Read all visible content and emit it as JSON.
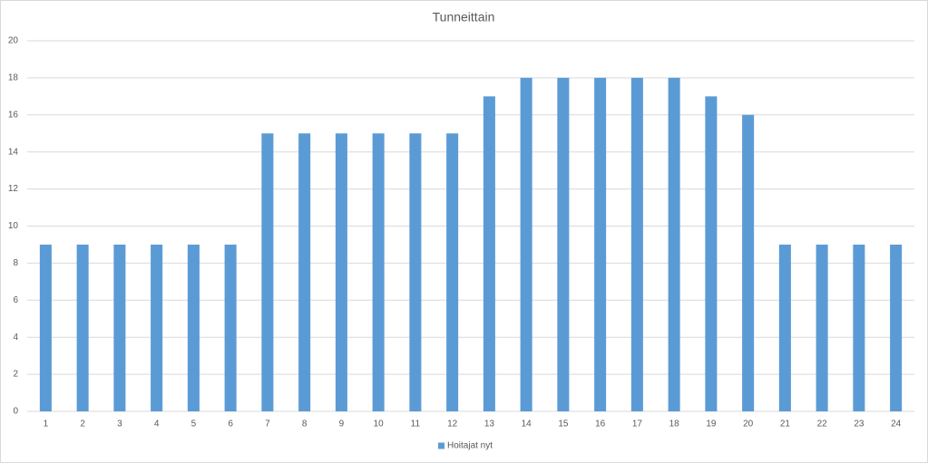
{
  "chart_data": {
    "type": "bar",
    "title": "Tunneittain",
    "categories": [
      "1",
      "2",
      "3",
      "4",
      "5",
      "6",
      "7",
      "8",
      "9",
      "10",
      "11",
      "12",
      "13",
      "14",
      "15",
      "16",
      "17",
      "18",
      "19",
      "20",
      "21",
      "22",
      "23",
      "24"
    ],
    "series": [
      {
        "name": "Hoitajat nyt",
        "color": "#5b9bd5",
        "values": [
          9,
          9,
          9,
          9,
          9,
          9,
          15,
          15,
          15,
          15,
          15,
          15,
          17,
          18,
          18,
          18,
          18,
          18,
          17,
          16,
          9,
          9,
          9,
          9
        ]
      }
    ],
    "ylim": [
      0,
      20
    ],
    "yticks": [
      0,
      2,
      4,
      6,
      8,
      10,
      12,
      14,
      16,
      18,
      20
    ],
    "grid": true,
    "legend": "bottom"
  }
}
